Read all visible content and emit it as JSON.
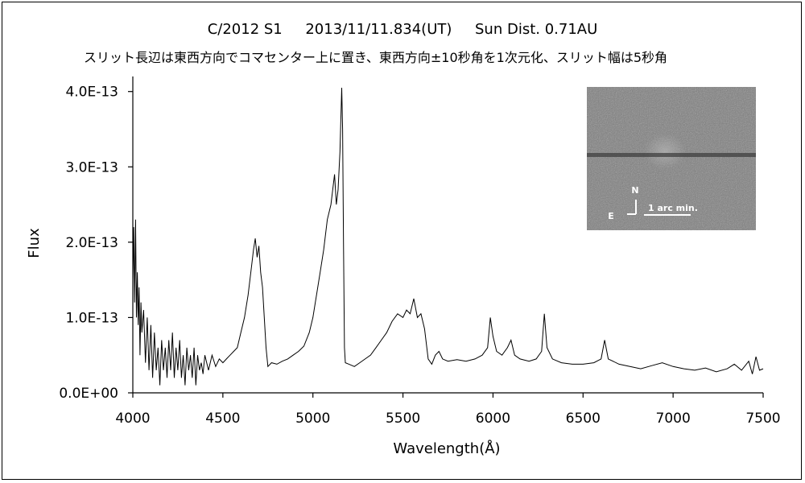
{
  "chart_data": {
    "type": "line",
    "title": "C/2012 S1     2013/11/11.834(UT)     Sun Dist. 0.71AU",
    "subtitle": "スリット長辺は東西方向でコマセンター上に置き、東西方向±10秒角を1次元化、スリット幅は5秒角",
    "xlabel": "Wavelength(Å)",
    "ylabel": "Flux",
    "xlim": [
      4000,
      7500
    ],
    "ylim": [
      0,
      4.2e-13
    ],
    "x_ticks": [
      "4000",
      "4500",
      "5000",
      "5500",
      "6000",
      "6500",
      "7000",
      "7500"
    ],
    "y_ticks": [
      "0.0E+00",
      "1.0E-13",
      "2.0E-13",
      "3.0E-13",
      "4.0E-13"
    ],
    "y_tick_values": [
      0,
      1e-13,
      2e-13,
      3e-13,
      4e-13
    ],
    "grid": false,
    "series": [
      {
        "color": "#000000",
        "points": [
          [
            4000,
            1.5e-13
          ],
          [
            4005,
            2.2e-13
          ],
          [
            4010,
            1.2e-13
          ],
          [
            4015,
            2.3e-13
          ],
          [
            4020,
            1e-13
          ],
          [
            4025,
            1.6e-13
          ],
          [
            4030,
            9e-14
          ],
          [
            4035,
            1.4e-13
          ],
          [
            4040,
            5e-14
          ],
          [
            4045,
            1.2e-13
          ],
          [
            4050,
            8e-14
          ],
          [
            4060,
            1.1e-13
          ],
          [
            4070,
            4e-14
          ],
          [
            4080,
            1e-13
          ],
          [
            4090,
            3e-14
          ],
          [
            4100,
            9e-14
          ],
          [
            4110,
            2e-14
          ],
          [
            4120,
            8e-14
          ],
          [
            4130,
            3e-14
          ],
          [
            4140,
            6e-14
          ],
          [
            4150,
            1e-14
          ],
          [
            4160,
            7e-14
          ],
          [
            4170,
            3e-14
          ],
          [
            4180,
            6e-14
          ],
          [
            4190,
            2e-14
          ],
          [
            4200,
            7e-14
          ],
          [
            4210,
            3e-14
          ],
          [
            4220,
            8e-14
          ],
          [
            4230,
            2e-14
          ],
          [
            4240,
            6e-14
          ],
          [
            4250,
            3e-14
          ],
          [
            4260,
            7e-14
          ],
          [
            4270,
            2e-14
          ],
          [
            4280,
            5e-14
          ],
          [
            4290,
            1e-14
          ],
          [
            4300,
            6e-14
          ],
          [
            4310,
            3e-14
          ],
          [
            4320,
            5e-14
          ],
          [
            4330,
            2e-14
          ],
          [
            4340,
            6e-14
          ],
          [
            4350,
            1e-14
          ],
          [
            4360,
            5e-14
          ],
          [
            4370,
            3e-14
          ],
          [
            4380,
            4e-14
          ],
          [
            4390,
            2.5e-14
          ],
          [
            4400,
            5e-14
          ],
          [
            4420,
            3e-14
          ],
          [
            4440,
            5e-14
          ],
          [
            4460,
            3.5e-14
          ],
          [
            4480,
            4.5e-14
          ],
          [
            4500,
            4e-14
          ],
          [
            4520,
            4.5e-14
          ],
          [
            4540,
            5e-14
          ],
          [
            4560,
            5.5e-14
          ],
          [
            4580,
            6e-14
          ],
          [
            4600,
            8e-14
          ],
          [
            4620,
            1e-13
          ],
          [
            4640,
            1.3e-13
          ],
          [
            4660,
            1.7e-13
          ],
          [
            4670,
            1.9e-13
          ],
          [
            4680,
            2.05e-13
          ],
          [
            4690,
            1.8e-13
          ],
          [
            4700,
            1.95e-13
          ],
          [
            4710,
            1.6e-13
          ],
          [
            4720,
            1.4e-13
          ],
          [
            4730,
            1e-13
          ],
          [
            4740,
            6e-14
          ],
          [
            4750,
            3.5e-14
          ],
          [
            4770,
            4e-14
          ],
          [
            4800,
            3.8e-14
          ],
          [
            4830,
            4.2e-14
          ],
          [
            4860,
            4.5e-14
          ],
          [
            4890,
            5e-14
          ],
          [
            4920,
            5.5e-14
          ],
          [
            4950,
            6.2e-14
          ],
          [
            4980,
            8e-14
          ],
          [
            5000,
            1e-13
          ],
          [
            5020,
            1.3e-13
          ],
          [
            5040,
            1.6e-13
          ],
          [
            5060,
            1.9e-13
          ],
          [
            5080,
            2.3e-13
          ],
          [
            5100,
            2.5e-13
          ],
          [
            5120,
            2.9e-13
          ],
          [
            5130,
            2.5e-13
          ],
          [
            5140,
            2.7e-13
          ],
          [
            5150,
            3.2e-13
          ],
          [
            5160,
            4.05e-13
          ],
          [
            5165,
            3.5e-13
          ],
          [
            5170,
            2e-13
          ],
          [
            5175,
            6e-14
          ],
          [
            5180,
            4e-14
          ],
          [
            5200,
            3.8e-14
          ],
          [
            5230,
            3.5e-14
          ],
          [
            5260,
            4e-14
          ],
          [
            5290,
            4.5e-14
          ],
          [
            5320,
            5e-14
          ],
          [
            5350,
            6e-14
          ],
          [
            5380,
            7e-14
          ],
          [
            5410,
            8e-14
          ],
          [
            5440,
            9.5e-14
          ],
          [
            5470,
            1.05e-13
          ],
          [
            5500,
            1e-13
          ],
          [
            5520,
            1.1e-13
          ],
          [
            5540,
            1.05e-13
          ],
          [
            5560,
            1.25e-13
          ],
          [
            5580,
            1e-13
          ],
          [
            5600,
            1.05e-13
          ],
          [
            5620,
            8.5e-14
          ],
          [
            5640,
            4.5e-14
          ],
          [
            5660,
            3.8e-14
          ],
          [
            5680,
            5e-14
          ],
          [
            5700,
            5.5e-14
          ],
          [
            5720,
            4.5e-14
          ],
          [
            5750,
            4.2e-14
          ],
          [
            5800,
            4.4e-14
          ],
          [
            5850,
            4.2e-14
          ],
          [
            5900,
            4.5e-14
          ],
          [
            5940,
            5e-14
          ],
          [
            5970,
            6e-14
          ],
          [
            5985,
            1e-13
          ],
          [
            6000,
            7.5e-14
          ],
          [
            6020,
            5.5e-14
          ],
          [
            6050,
            5e-14
          ],
          [
            6080,
            6e-14
          ],
          [
            6100,
            7e-14
          ],
          [
            6120,
            5e-14
          ],
          [
            6150,
            4.5e-14
          ],
          [
            6200,
            4.2e-14
          ],
          [
            6240,
            4.5e-14
          ],
          [
            6270,
            5.5e-14
          ],
          [
            6285,
            1.05e-13
          ],
          [
            6300,
            6e-14
          ],
          [
            6330,
            4.5e-14
          ],
          [
            6380,
            4e-14
          ],
          [
            6440,
            3.8e-14
          ],
          [
            6500,
            3.8e-14
          ],
          [
            6560,
            4e-14
          ],
          [
            6600,
            4.5e-14
          ],
          [
            6620,
            7e-14
          ],
          [
            6640,
            4.5e-14
          ],
          [
            6700,
            3.8e-14
          ],
          [
            6760,
            3.5e-14
          ],
          [
            6820,
            3.2e-14
          ],
          [
            6880,
            3.6e-14
          ],
          [
            6940,
            4e-14
          ],
          [
            7000,
            3.5e-14
          ],
          [
            7060,
            3.2e-14
          ],
          [
            7120,
            3e-14
          ],
          [
            7180,
            3.3e-14
          ],
          [
            7240,
            2.8e-14
          ],
          [
            7300,
            3.2e-14
          ],
          [
            7340,
            3.8e-14
          ],
          [
            7380,
            3e-14
          ],
          [
            7420,
            4.2e-14
          ],
          [
            7440,
            2.5e-14
          ],
          [
            7460,
            4.8e-14
          ],
          [
            7480,
            3e-14
          ],
          [
            7500,
            3.2e-14
          ]
        ]
      }
    ],
    "inset": {
      "description_labels": {
        "north": "N",
        "east": "E",
        "scale": "1 arc min."
      }
    }
  }
}
